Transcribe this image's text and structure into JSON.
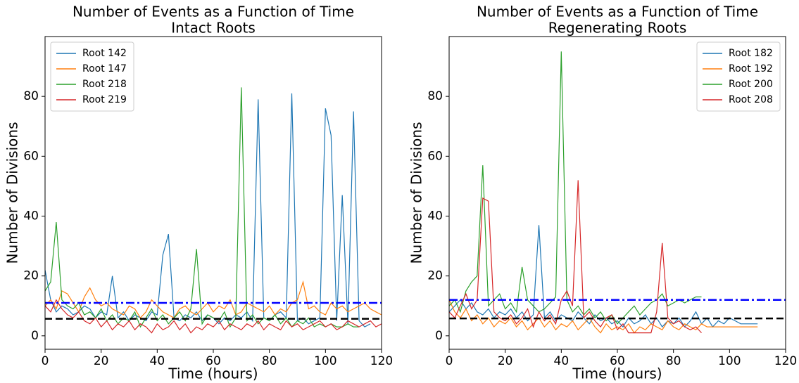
{
  "chart_data": [
    {
      "type": "line",
      "title": "Number of Events as a Function of Time",
      "subtitle": "Intact Roots",
      "xlabel": "Time (hours)",
      "ylabel": "Number of Divisions",
      "xlim": [
        0,
        120
      ],
      "ylim": [
        -4.5,
        100
      ],
      "xticks": [
        0,
        20,
        40,
        60,
        80,
        100,
        120
      ],
      "yticks": [
        0,
        20,
        40,
        60,
        80
      ],
      "legend": "upper left",
      "x": [
        0,
        2,
        4,
        6,
        8,
        10,
        12,
        14,
        16,
        18,
        20,
        22,
        24,
        26,
        28,
        30,
        32,
        34,
        36,
        38,
        40,
        42,
        44,
        46,
        48,
        50,
        52,
        54,
        56,
        58,
        60,
        62,
        64,
        66,
        68,
        70,
        72,
        74,
        76,
        78,
        80,
        82,
        84,
        86,
        88,
        90,
        92,
        94,
        96,
        98,
        100,
        102,
        104,
        106,
        108,
        110,
        112,
        114,
        116,
        118,
        120
      ],
      "series": [
        {
          "name": "Root 142",
          "color": "#1f77b4",
          "values": [
            22,
            12,
            8,
            10,
            9,
            7,
            8,
            10,
            9,
            6,
            8,
            7,
            20,
            6,
            8,
            5,
            7,
            6,
            5,
            8,
            7,
            27,
            34,
            6,
            5,
            7,
            6,
            8,
            5,
            7,
            6,
            4,
            6,
            5,
            7,
            6,
            8,
            5,
            79,
            6,
            5,
            7,
            8,
            6,
            81,
            5,
            6,
            4,
            5,
            6,
            76,
            67,
            5,
            47,
            4,
            75,
            5,
            3,
            4,
            null,
            null
          ]
        },
        {
          "name": "Root 147",
          "color": "#ff7f0e",
          "values": [
            10,
            12,
            9,
            15,
            14,
            11,
            8,
            13,
            16,
            12,
            10,
            11,
            9,
            8,
            7,
            10,
            9,
            6,
            8,
            12,
            10,
            8,
            7,
            6,
            9,
            10,
            8,
            7,
            9,
            11,
            8,
            10,
            9,
            12,
            7,
            8,
            11,
            10,
            9,
            8,
            10,
            7,
            9,
            8,
            11,
            12,
            18,
            9,
            10,
            8,
            7,
            11,
            9,
            10,
            8,
            9,
            10,
            11,
            9,
            8,
            7
          ]
        },
        {
          "name": "Root 218",
          "color": "#2ca02c",
          "values": [
            15,
            18,
            38,
            12,
            10,
            9,
            11,
            7,
            8,
            6,
            9,
            5,
            7,
            4,
            6,
            5,
            8,
            3,
            6,
            9,
            5,
            7,
            4,
            6,
            8,
            5,
            9,
            29,
            4,
            7,
            6,
            5,
            8,
            3,
            6,
            83,
            5,
            7,
            4,
            6,
            5,
            7,
            4,
            6,
            3,
            5,
            4,
            6,
            3,
            4,
            3,
            4,
            3,
            3,
            4,
            3,
            3,
            null,
            null,
            null,
            null
          ]
        },
        {
          "name": "Root 219",
          "color": "#d62728",
          "values": [
            10,
            8,
            12,
            9,
            7,
            6,
            8,
            5,
            4,
            6,
            3,
            5,
            2,
            4,
            3,
            5,
            2,
            4,
            3,
            1,
            4,
            2,
            3,
            5,
            2,
            4,
            1,
            3,
            2,
            4,
            3,
            5,
            2,
            4,
            3,
            2,
            4,
            3,
            5,
            2,
            4,
            3,
            2,
            5,
            3,
            4,
            2,
            3,
            4,
            5,
            3,
            4,
            2,
            3,
            5,
            4,
            3,
            4,
            5,
            3,
            4
          ]
        }
      ],
      "hlines": [
        {
          "value": 11,
          "color": "#0000ff",
          "style": "dashdot"
        },
        {
          "value": 5.7,
          "color": "#000000",
          "style": "dashed"
        }
      ]
    },
    {
      "type": "line",
      "title": "Number of Events as a Function of Time",
      "subtitle": "Regenerating Roots",
      "xlabel": "Time (hours)",
      "ylabel": "Number of Divisions",
      "xlim": [
        0,
        120
      ],
      "ylim": [
        -4.5,
        100
      ],
      "xticks": [
        0,
        20,
        40,
        60,
        80,
        100,
        120
      ],
      "yticks": [
        0,
        20,
        40,
        60,
        80
      ],
      "legend": "upper right",
      "x": [
        0,
        2,
        4,
        6,
        8,
        10,
        12,
        14,
        16,
        18,
        20,
        22,
        24,
        26,
        28,
        30,
        32,
        34,
        36,
        38,
        40,
        42,
        44,
        46,
        48,
        50,
        52,
        54,
        56,
        58,
        60,
        62,
        64,
        66,
        68,
        70,
        72,
        74,
        76,
        78,
        80,
        82,
        84,
        86,
        88,
        90,
        92,
        94,
        96,
        98,
        100,
        102,
        104,
        106,
        108,
        110
      ],
      "series": [
        {
          "name": "Root 182",
          "color": "#1f77b4",
          "values": [
            8,
            10,
            12,
            9,
            11,
            8,
            7,
            9,
            6,
            8,
            7,
            9,
            6,
            8,
            5,
            7,
            37,
            6,
            8,
            5,
            7,
            6,
            5,
            8,
            6,
            4,
            7,
            5,
            6,
            4,
            5,
            3,
            6,
            4,
            5,
            7,
            4,
            6,
            3,
            5,
            4,
            6,
            3,
            5,
            8,
            4,
            6,
            3,
            5,
            4,
            6,
            5,
            4,
            4,
            4,
            4
          ]
        },
        {
          "name": "Root 192",
          "color": "#ff7f0e",
          "values": [
            12,
            8,
            6,
            9,
            5,
            7,
            4,
            6,
            3,
            5,
            4,
            6,
            3,
            5,
            2,
            4,
            6,
            3,
            5,
            2,
            4,
            3,
            5,
            2,
            4,
            6,
            3,
            1,
            4,
            2,
            3,
            2,
            4,
            1,
            3,
            2,
            4,
            3,
            2,
            5,
            3,
            2,
            4,
            3,
            2,
            4,
            3,
            3,
            3,
            3,
            3,
            3,
            3,
            3,
            3,
            3
          ]
        },
        {
          "name": "Root 200",
          "color": "#2ca02c",
          "values": [
            10,
            12,
            8,
            15,
            18,
            20,
            57,
            10,
            12,
            14,
            9,
            11,
            8,
            23,
            12,
            10,
            8,
            9,
            11,
            13,
            95,
            12,
            8,
            10,
            7,
            9,
            6,
            8,
            5,
            7,
            4,
            6,
            8,
            10,
            7,
            9,
            11,
            12,
            14,
            10,
            11,
            12,
            11,
            12,
            13,
            13,
            null,
            null,
            null,
            null,
            null,
            null,
            null,
            null,
            null,
            null
          ]
        },
        {
          "name": "Root 208",
          "color": "#d62728",
          "values": [
            8,
            6,
            10,
            14,
            9,
            12,
            46,
            45,
            8,
            6,
            5,
            7,
            4,
            6,
            9,
            3,
            8,
            5,
            7,
            4,
            12,
            15,
            10,
            52,
            6,
            8,
            5,
            3,
            6,
            7,
            2,
            4,
            1,
            1,
            1,
            1,
            1,
            8,
            31,
            6,
            4,
            5,
            3,
            2,
            3,
            1,
            null,
            null,
            null,
            null,
            null,
            null,
            null,
            null,
            null,
            null
          ]
        }
      ],
      "hlines": [
        {
          "value": 12,
          "color": "#0000ff",
          "style": "dashdot"
        },
        {
          "value": 5.8,
          "color": "#000000",
          "style": "dashed"
        }
      ]
    }
  ]
}
